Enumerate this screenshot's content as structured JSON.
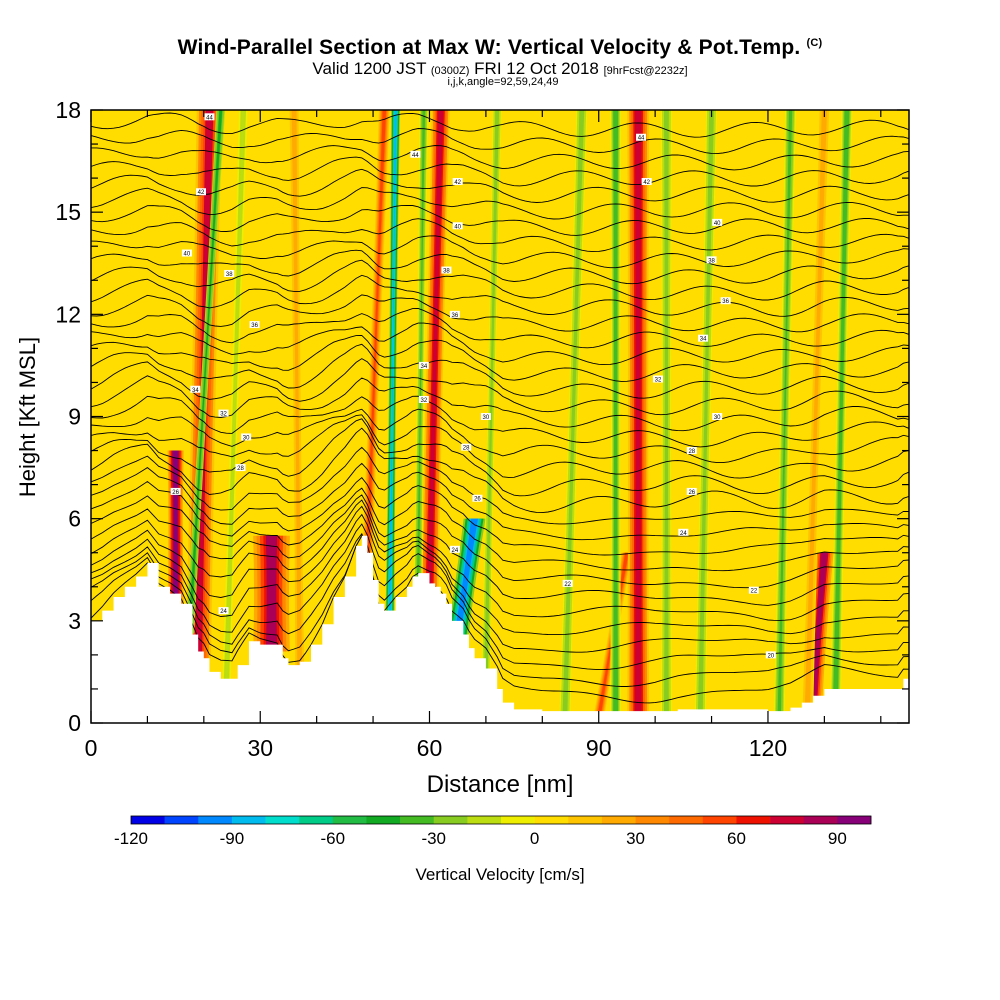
{
  "title": {
    "main": "Wind-Parallel Section at Max W: Vertical Velocity & Pot.Temp.",
    "copyright": "(C)",
    "valid_prefix": "Valid 1200 JST",
    "valid_utc": "(0300Z)",
    "valid_date": "FRI 12 Oct 2018",
    "forecast": "[9hrFcst@2232z]",
    "indices": "i,j,k,angle=92,59,24,49"
  },
  "chart_data": {
    "type": "heatmap",
    "xlabel": "Distance [nm]",
    "ylabel": "Height [Kft MSL]",
    "xlim": [
      0,
      145
    ],
    "ylim": [
      0,
      18
    ],
    "x_ticks": [
      0,
      30,
      60,
      90,
      120
    ],
    "y_ticks": [
      0,
      3,
      6,
      9,
      12,
      15,
      18
    ],
    "colorbar": {
      "label": "Vertical Velocity [cm/s]",
      "range": [
        -120,
        100
      ],
      "ticks": [
        -120,
        -90,
        -60,
        -30,
        0,
        30,
        60,
        90
      ],
      "colors": [
        "#0000e6",
        "#0044ff",
        "#0088ff",
        "#00bbee",
        "#00ddcc",
        "#00cc88",
        "#22bb44",
        "#11aa22",
        "#44bb22",
        "#88cc22",
        "#bbdd11",
        "#eeee00",
        "#ffdd00",
        "#ffc400",
        "#ffaa00",
        "#ff8800",
        "#ff6a00",
        "#ff4400",
        "#ee1100",
        "#cc0033",
        "#aa0055",
        "#880077"
      ]
    },
    "updraft_bands": [
      {
        "x": 19,
        "x_top": 21,
        "w": 3.5,
        "velocity": 70
      },
      {
        "x": 15,
        "x_top": 15,
        "w": 2.2,
        "velocity": 95,
        "y_top": 8
      },
      {
        "x": 32,
        "x_top": 32,
        "w": 5,
        "velocity": 80,
        "y_top": 5.5
      },
      {
        "x": 37,
        "x_top": 36,
        "w": 1.5,
        "velocity": 25
      },
      {
        "x": 49,
        "x_top": 52,
        "w": 1.5,
        "velocity": 55
      },
      {
        "x": 60,
        "x_top": 62,
        "w": 2.5,
        "velocity": 75
      },
      {
        "x": 90,
        "x_top": 95,
        "w": 1.5,
        "velocity": 50,
        "y_top": 5
      },
      {
        "x": 97,
        "x_top": 97,
        "w": 3,
        "velocity": 75
      },
      {
        "x": 128,
        "x_top": 130,
        "w": 2.5,
        "velocity": 85,
        "y_top": 5
      },
      {
        "x": 127,
        "x_top": 130,
        "w": 1.6,
        "velocity": 30
      }
    ],
    "downdraft_bands": [
      {
        "x": 17.5,
        "x_top": 23,
        "w": 1.2,
        "velocity": -45
      },
      {
        "x": 24,
        "x_top": 27,
        "w": 1.2,
        "velocity": -20
      },
      {
        "x": 53,
        "x_top": 54,
        "w": 1.2,
        "velocity": -90
      },
      {
        "x": 58,
        "x_top": 59,
        "w": 1.2,
        "velocity": -35
      },
      {
        "x": 65,
        "x_top": 68,
        "w": 3,
        "velocity": -95,
        "y_top": 6
      },
      {
        "x": 70,
        "x_top": 72,
        "w": 1.2,
        "velocity": -30
      },
      {
        "x": 84,
        "x_top": 87,
        "w": 1.5,
        "velocity": -25
      },
      {
        "x": 93,
        "x_top": 93,
        "w": 1.5,
        "velocity": -40
      },
      {
        "x": 102,
        "x_top": 102,
        "w": 1.5,
        "velocity": -30
      },
      {
        "x": 108,
        "x_top": 110,
        "w": 1.5,
        "velocity": -25
      },
      {
        "x": 122,
        "x_top": 124,
        "w": 1.5,
        "velocity": -35
      },
      {
        "x": 132,
        "x_top": 134,
        "w": 1.5,
        "velocity": -40
      }
    ],
    "terrain": [
      [
        0,
        3.0
      ],
      [
        2,
        3.3
      ],
      [
        4,
        3.7
      ],
      [
        6,
        4.0
      ],
      [
        8,
        4.3
      ],
      [
        10,
        4.7
      ],
      [
        12,
        4.0
      ],
      [
        14,
        3.8
      ],
      [
        16,
        3.5
      ],
      [
        18,
        2.6
      ],
      [
        19,
        2.1
      ],
      [
        20,
        1.9
      ],
      [
        21,
        1.5
      ],
      [
        23,
        1.3
      ],
      [
        25,
        1.3
      ],
      [
        26,
        1.7
      ],
      [
        28,
        2.4
      ],
      [
        30,
        2.3
      ],
      [
        31,
        2.3
      ],
      [
        33,
        2.3
      ],
      [
        34,
        1.9
      ],
      [
        35,
        1.7
      ],
      [
        37,
        1.8
      ],
      [
        39,
        2.3
      ],
      [
        41,
        2.9
      ],
      [
        43,
        3.7
      ],
      [
        45,
        4.3
      ],
      [
        47,
        5.2
      ],
      [
        48,
        5.5
      ],
      [
        49,
        5.0
      ],
      [
        50,
        4.2
      ],
      [
        51,
        3.5
      ],
      [
        52,
        3.3
      ],
      [
        54,
        3.7
      ],
      [
        56,
        4.0
      ],
      [
        57,
        4.3
      ],
      [
        58,
        4.4
      ],
      [
        60,
        4.1
      ],
      [
        61,
        4.0
      ],
      [
        62,
        3.8
      ],
      [
        63,
        3.5
      ],
      [
        64,
        3.0
      ],
      [
        66,
        2.6
      ],
      [
        67,
        2.2
      ],
      [
        68,
        1.9
      ],
      [
        70,
        1.6
      ],
      [
        72,
        1.0
      ],
      [
        73,
        0.6
      ],
      [
        75,
        0.4
      ],
      [
        80,
        0.35
      ],
      [
        88,
        0.35
      ],
      [
        94,
        0.35
      ],
      [
        100,
        0.35
      ],
      [
        104,
        0.4
      ],
      [
        110,
        0.4
      ],
      [
        116,
        0.4
      ],
      [
        120,
        0.35
      ],
      [
        124,
        0.45
      ],
      [
        126,
        0.6
      ],
      [
        128,
        0.8
      ],
      [
        130,
        1.0
      ],
      [
        132,
        1.0
      ],
      [
        136,
        1.0
      ],
      [
        140,
        1.0
      ],
      [
        143,
        1.0
      ],
      [
        144,
        1.3
      ],
      [
        145,
        1.3
      ]
    ],
    "theta_contour_labels": [
      {
        "x": 21,
        "y": 17.8,
        "text": "44"
      },
      {
        "x": 19.5,
        "y": 15.6,
        "text": "42"
      },
      {
        "x": 17,
        "y": 13.8,
        "text": "40"
      },
      {
        "x": 24.5,
        "y": 13.2,
        "text": "38"
      },
      {
        "x": 29,
        "y": 11.7,
        "text": "36"
      },
      {
        "x": 18.5,
        "y": 9.8,
        "text": "34"
      },
      {
        "x": 23.5,
        "y": 9.1,
        "text": "32"
      },
      {
        "x": 27.5,
        "y": 8.4,
        "text": "30"
      },
      {
        "x": 26.5,
        "y": 7.5,
        "text": "28"
      },
      {
        "x": 15,
        "y": 6.8,
        "text": "26"
      },
      {
        "x": 23.5,
        "y": 3.3,
        "text": "24"
      },
      {
        "x": 57.5,
        "y": 16.7,
        "text": "44"
      },
      {
        "x": 65,
        "y": 15.9,
        "text": "42"
      },
      {
        "x": 65,
        "y": 14.6,
        "text": "40"
      },
      {
        "x": 63,
        "y": 13.3,
        "text": "38"
      },
      {
        "x": 64.5,
        "y": 12.0,
        "text": "36"
      },
      {
        "x": 59,
        "y": 10.5,
        "text": "34"
      },
      {
        "x": 59,
        "y": 9.5,
        "text": "32"
      },
      {
        "x": 70,
        "y": 9.0,
        "text": "30"
      },
      {
        "x": 66.5,
        "y": 8.1,
        "text": "28"
      },
      {
        "x": 68.5,
        "y": 6.6,
        "text": "26"
      },
      {
        "x": 64.5,
        "y": 5.1,
        "text": "24"
      },
      {
        "x": 84.5,
        "y": 4.1,
        "text": "22"
      },
      {
        "x": 97.5,
        "y": 17.2,
        "text": "44"
      },
      {
        "x": 98.5,
        "y": 15.9,
        "text": "42"
      },
      {
        "x": 111,
        "y": 14.7,
        "text": "40"
      },
      {
        "x": 110,
        "y": 13.6,
        "text": "38"
      },
      {
        "x": 112.5,
        "y": 12.4,
        "text": "36"
      },
      {
        "x": 108.5,
        "y": 11.3,
        "text": "34"
      },
      {
        "x": 100.5,
        "y": 10.1,
        "text": "32"
      },
      {
        "x": 111,
        "y": 9.0,
        "text": "30"
      },
      {
        "x": 106.5,
        "y": 8.0,
        "text": "28"
      },
      {
        "x": 106.5,
        "y": 6.8,
        "text": "26"
      },
      {
        "x": 105,
        "y": 5.6,
        "text": "24"
      },
      {
        "x": 117.5,
        "y": 3.9,
        "text": "22"
      },
      {
        "x": 120.5,
        "y": 2.0,
        "text": "20"
      }
    ]
  }
}
